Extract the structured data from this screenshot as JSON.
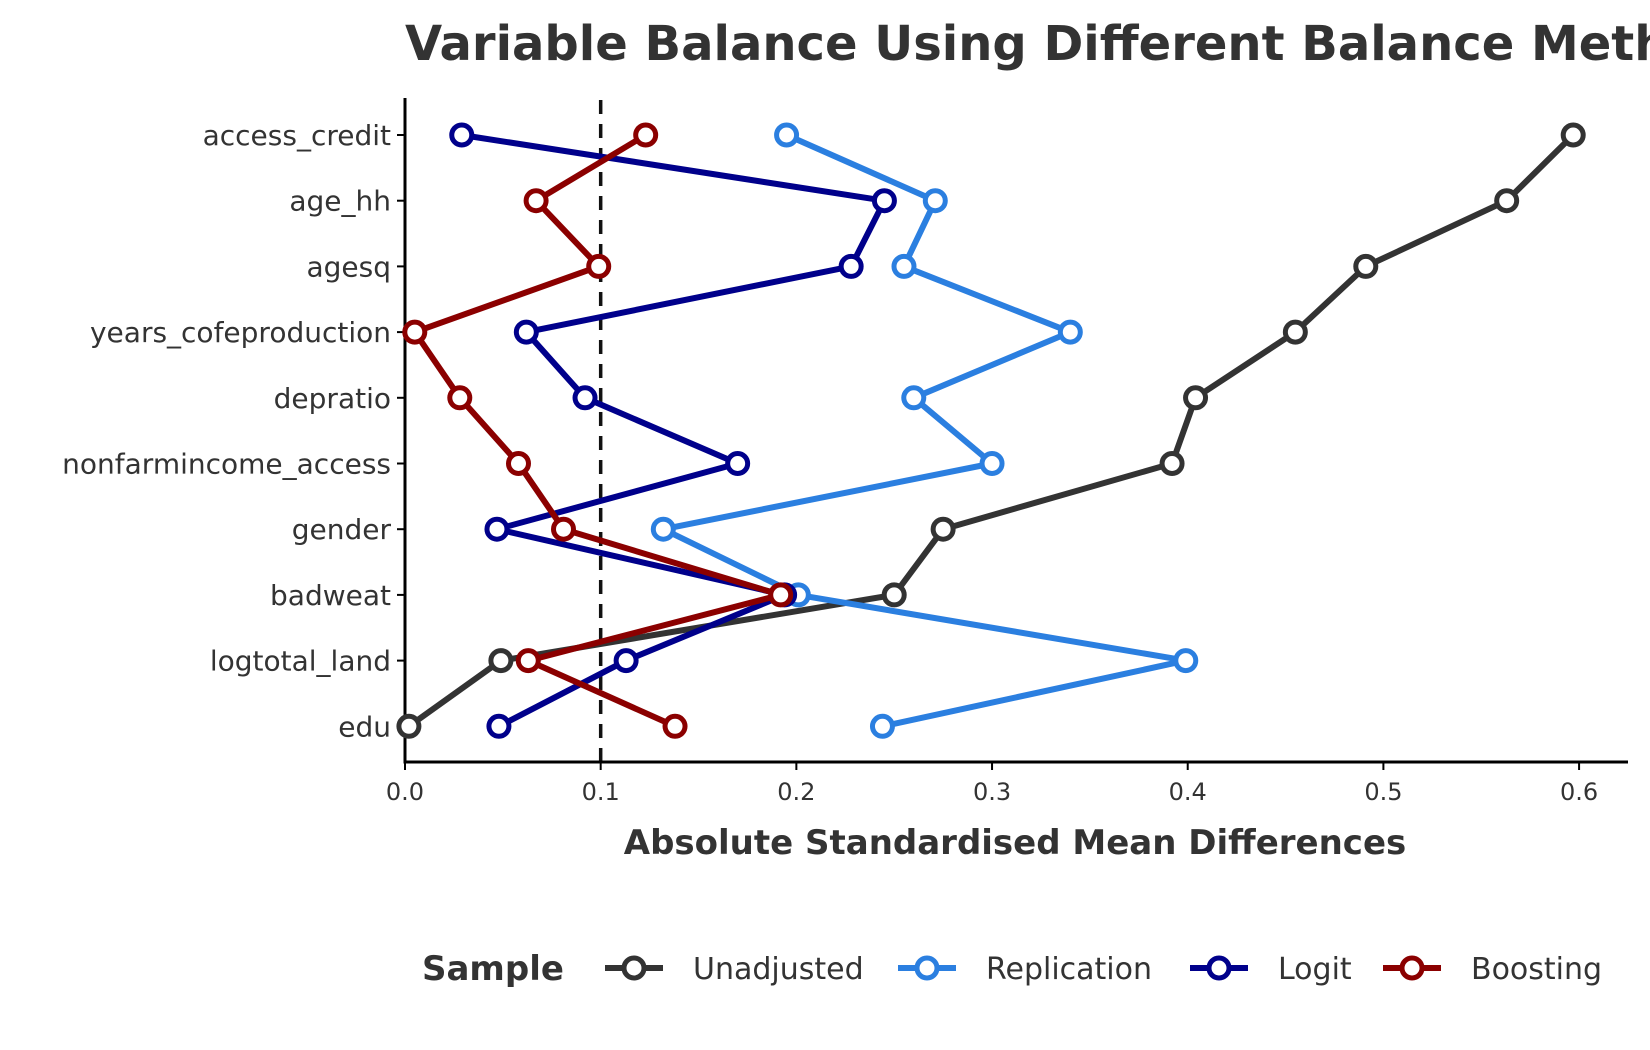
{
  "chart_data": {
    "type": "line",
    "title": "Variable Balance Using Different Balance Method",
    "xlabel": "Absolute Standardised Mean Differences",
    "ylabel": "",
    "xlim": [
      0,
      0.625
    ],
    "xticks": [
      "0.0",
      "0.1",
      "0.2",
      "0.3",
      "0.4",
      "0.5",
      "0.6"
    ],
    "xtick_values": [
      0,
      0.1,
      0.2,
      0.3,
      0.4,
      0.5,
      0.6
    ],
    "reference_line": 0.1,
    "grid": false,
    "legend_position": "bottom",
    "legend_title": "Sample",
    "categories": [
      "access_credit",
      "age_hh",
      "agesq",
      "years_cofeproduction",
      "depratio",
      "nonfarmincome_access",
      "gender",
      "badweat",
      "logtotal_land",
      "edu"
    ],
    "series": [
      {
        "name": "Unadjusted",
        "color": "#333333",
        "values": [
          0.597,
          0.563,
          0.491,
          0.455,
          0.404,
          0.392,
          0.275,
          0.25,
          0.049,
          0.002
        ]
      },
      {
        "name": "Replication",
        "color": "#2B7FE0",
        "values": [
          0.195,
          0.271,
          0.255,
          0.34,
          0.26,
          0.3,
          0.132,
          0.201,
          0.399,
          0.244
        ]
      },
      {
        "name": "Logit",
        "color": "#00008B",
        "values": [
          0.029,
          0.245,
          0.228,
          0.062,
          0.092,
          0.17,
          0.047,
          0.194,
          0.113,
          0.048
        ]
      },
      {
        "name": "Boosting",
        "color": "#8B0000",
        "values": [
          0.123,
          0.067,
          0.099,
          0.005,
          0.028,
          0.058,
          0.081,
          0.192,
          0.063,
          0.138
        ]
      }
    ]
  }
}
